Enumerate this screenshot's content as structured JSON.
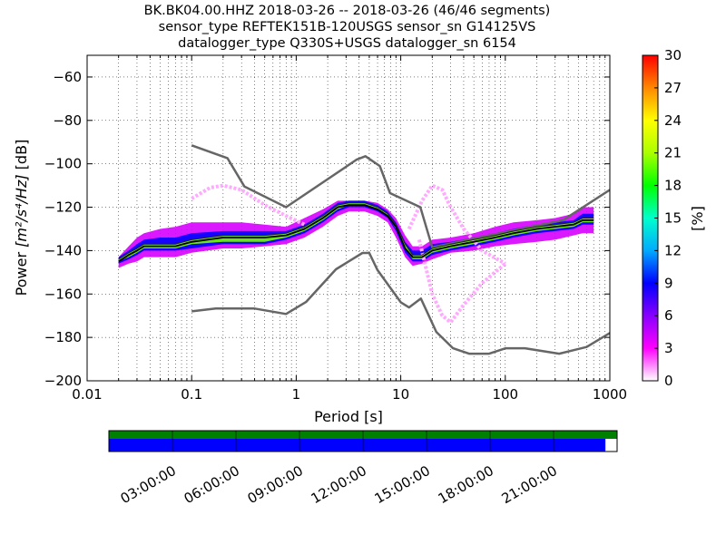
{
  "titles": {
    "line1": "BK.BK04.00.HHZ   2018-03-26 -- 2018-03-26  (46/46 segments)",
    "line2": "sensor_type REFTEK151B-120USGS sensor_sn G14125VS",
    "line3": "datalogger_type Q330S+USGS datalogger_sn 6154"
  },
  "chart_data": {
    "type": "heatmap",
    "title": "BK.BK04.00.HHZ   2018-03-26 -- 2018-03-26  (46/46 segments)",
    "xlabel": "Period [s]",
    "ylabel_prefix": "Power ",
    "ylabel_units": "[m²/s⁴/Hz]",
    "ylabel_suffix": " [dB]",
    "xscale": "log",
    "xlim": [
      0.01,
      1000
    ],
    "ylim": [
      -200,
      -50
    ],
    "x_ticks": [
      0.01,
      0.1,
      1,
      10,
      100,
      1000
    ],
    "x_tick_labels": [
      "0.01",
      "0.1",
      "1",
      "10",
      "100",
      "1000"
    ],
    "y_ticks": [
      -200,
      -180,
      -160,
      -140,
      -120,
      -100,
      -80,
      -60
    ],
    "y_tick_labels": [
      "−200",
      "−180",
      "−160",
      "−140",
      "−120",
      "−100",
      "−80",
      "−60"
    ],
    "grid": "dotted",
    "colorbar": {
      "label": "[%]",
      "ticks": [
        0,
        3,
        6,
        9,
        12,
        15,
        18,
        21,
        24,
        27,
        30
      ],
      "tick_labels": [
        "0",
        "3",
        "6",
        "9",
        "12",
        "15",
        "18",
        "21",
        "24",
        "27",
        "30"
      ],
      "range": [
        0,
        30
      ],
      "colors": [
        "#ffffff",
        "#ff00ff",
        "#8800ff",
        "#0000ff",
        "#00aaff",
        "#00ffcc",
        "#00ff00",
        "#aaff00",
        "#ffff00",
        "#ff8800",
        "#ff0000"
      ]
    },
    "nlnm": {
      "name": "NLNM",
      "x": [
        0.1,
        0.17,
        0.4,
        0.8,
        1.24,
        2.4,
        4.3,
        5.0,
        6.0,
        10.0,
        12.0,
        15.6,
        21.9,
        31.6,
        45.0,
        70.0,
        101.0,
        154.0,
        328.0,
        600.0,
        1000.0
      ],
      "y": [
        -168,
        -166.7,
        -166.7,
        -169.2,
        -163.7,
        -148.6,
        -141.1,
        -141.1,
        -149.0,
        -163.8,
        -166.2,
        -162.1,
        -177.5,
        -185.0,
        -187.5,
        -187.5,
        -185.0,
        -185.0,
        -187.5,
        -184.4,
        -178.0
      ]
    },
    "nhnm": {
      "name": "NHNM",
      "x": [
        0.1,
        0.22,
        0.32,
        0.8,
        3.8,
        4.6,
        6.3,
        7.9,
        15.4,
        20.0,
        354.8,
        1000.0
      ],
      "y": [
        -91.5,
        -97.4,
        -110.5,
        -120.0,
        -98.0,
        -96.5,
        -101.0,
        -113.5,
        -120.0,
        -138.5,
        -126.0,
        -112.0
      ]
    },
    "mean": {
      "name": "mean",
      "x": [
        0.02,
        0.025,
        0.03,
        0.035,
        0.05,
        0.07,
        0.1,
        0.2,
        0.3,
        0.5,
        0.8,
        1.2,
        1.8,
        2.5,
        3.2,
        4.5,
        6.0,
        7.5,
        9.0,
        11.0,
        13.0,
        16.0,
        20.0,
        30.0,
        50.0,
        80.0,
        120.0,
        200.0,
        300.0,
        450.0,
        550.0,
        700.0
      ],
      "y": [
        -145,
        -142,
        -140,
        -138,
        -138,
        -138,
        -136,
        -134,
        -134,
        -134,
        -133,
        -130,
        -125,
        -120,
        -119,
        -119,
        -121,
        -124,
        -129,
        -139,
        -143,
        -143,
        -140,
        -138,
        -136,
        -134,
        -132,
        -130,
        -129,
        -128,
        -126,
        -126
      ]
    },
    "median": {
      "name": "median",
      "x": [
        0.02,
        0.025,
        0.03,
        0.035,
        0.05,
        0.07,
        0.1,
        0.2,
        0.3,
        0.5,
        0.8,
        1.2,
        1.8,
        2.5,
        3.2,
        4.5,
        6.0,
        7.5,
        9.0,
        11.0,
        13.0,
        16.0,
        20.0,
        30.0,
        50.0,
        80.0,
        120.0,
        200.0,
        300.0,
        450.0,
        550.0,
        700.0
      ],
      "y": [
        -144,
        -141,
        -139,
        -137,
        -137,
        -137,
        -135,
        -133,
        -133,
        -133,
        -132,
        -129,
        -124,
        -119,
        -118,
        -118,
        -120,
        -123,
        -128,
        -137,
        -142,
        -142,
        -139,
        -137,
        -135,
        -133,
        -131,
        -129,
        -128,
        -127,
        -125,
        -125
      ]
    },
    "density_bands": [
      {
        "x": [
          0.02,
          0.025,
          0.03,
          0.035,
          0.05,
          0.07,
          0.1,
          0.2,
          0.3,
          0.5,
          0.8,
          1.2,
          1.8,
          2.5,
          3.2,
          4.5,
          6.0,
          7.5,
          9.0,
          11.0,
          13.0,
          16.0,
          20.0,
          30.0,
          50.0,
          80.0,
          120.0,
          200.0,
          300.0,
          450.0,
          550.0,
          700.0
        ],
        "y_low": [
          -148,
          -146,
          -145,
          -143,
          -143,
          -143,
          -141,
          -139,
          -139,
          -138,
          -137,
          -134,
          -129,
          -124,
          -122,
          -122,
          -124,
          -127,
          -134,
          -143,
          -147,
          -146,
          -144,
          -141,
          -140,
          -138,
          -137,
          -136,
          -135,
          -133,
          -132,
          -132
        ],
        "y_high": [
          -143,
          -138,
          -134,
          -132,
          -130,
          -129,
          -127,
          -127,
          -127,
          -128,
          -129,
          -125,
          -121,
          -117,
          -117,
          -117,
          -118,
          -121,
          -125,
          -133,
          -138,
          -138,
          -135,
          -134,
          -132,
          -129,
          -127,
          -126,
          -125,
          -123,
          -120,
          -120
        ],
        "percent": 4
      },
      {
        "x": [
          0.02,
          0.025,
          0.03,
          0.035,
          0.05,
          0.07,
          0.1,
          0.2,
          0.3,
          0.5,
          0.8,
          1.2,
          1.8,
          2.5,
          3.2,
          4.5,
          6.0,
          7.5,
          9.0,
          11.0,
          13.0,
          16.0,
          20.0,
          30.0,
          50.0,
          80.0,
          120.0,
          200.0,
          300.0,
          450.0,
          550.0,
          700.0
        ],
        "y_low": [
          -146,
          -144,
          -142,
          -140,
          -140,
          -140,
          -139,
          -137,
          -137,
          -137,
          -135,
          -132,
          -127,
          -122,
          -120,
          -120,
          -122,
          -125,
          -131,
          -141,
          -145,
          -145,
          -142,
          -140,
          -138,
          -136,
          -134,
          -132,
          -131,
          -130,
          -128,
          -128
        ],
        "y_high": [
          -143,
          -140,
          -137,
          -135,
          -134,
          -134,
          -132,
          -131,
          -131,
          -131,
          -131,
          -128,
          -123,
          -118,
          -117,
          -117,
          -119,
          -122,
          -127,
          -136,
          -140,
          -140,
          -137,
          -136,
          -134,
          -132,
          -130,
          -128,
          -127,
          -126,
          -123,
          -123
        ],
        "percent": 9
      },
      {
        "x": [
          0.02,
          0.025,
          0.03,
          0.035,
          0.05,
          0.07,
          0.1,
          0.2,
          0.3,
          0.5,
          0.8,
          1.2,
          1.8,
          2.5,
          3.2,
          4.5,
          6.0,
          7.5,
          9.0,
          11.0,
          13.0,
          16.0,
          20.0,
          30.0,
          50.0,
          80.0,
          120.0,
          200.0,
          300.0,
          450.0,
          550.0,
          700.0
        ],
        "y_low": [
          -145,
          -143,
          -141,
          -139,
          -139,
          -139,
          -137,
          -136,
          -136,
          -136,
          -134,
          -131,
          -126,
          -121,
          -119,
          -119,
          -121,
          -124,
          -130,
          -139,
          -144,
          -144,
          -141,
          -139,
          -137,
          -135,
          -133,
          -131,
          -130,
          -129,
          -127,
          -127
        ],
        "y_high": [
          -144,
          -141,
          -139,
          -137,
          -137,
          -137,
          -135,
          -133,
          -133,
          -133,
          -132,
          -129,
          -124,
          -119,
          -118,
          -118,
          -120,
          -123,
          -128,
          -137,
          -142,
          -142,
          -139,
          -137,
          -135,
          -133,
          -131,
          -129,
          -128,
          -127,
          -125,
          -125
        ],
        "percent": 20
      }
    ],
    "outlier_curves": [
      {
        "x": [
          0.1,
          0.15,
          0.2,
          0.3,
          0.5,
          0.8,
          1.2
        ],
        "y": [
          -116,
          -111,
          -110,
          -112,
          -119,
          -124,
          -128
        ],
        "percent": 1
      },
      {
        "x": [
          15.0,
          20.0,
          25.0,
          30.0,
          40.0,
          60.0,
          100.0
        ],
        "y": [
          -135,
          -160,
          -170,
          -173,
          -165,
          -155,
          -146
        ],
        "percent": 1
      },
      {
        "x": [
          12.0,
          16.0,
          20.0,
          25.0,
          30.0,
          40.0,
          60.0,
          100.0
        ],
        "y": [
          -130,
          -117,
          -110,
          -112,
          -120,
          -130,
          -140,
          -146
        ],
        "percent": 1
      }
    ]
  },
  "timeline": {
    "tick_labels": [
      "03:00:00",
      "06:00:00",
      "09:00:00",
      "12:00:00",
      "15:00:00",
      "18:00:00",
      "21:00:00"
    ],
    "tick_hours": [
      3,
      6,
      9,
      12,
      15,
      18,
      21
    ],
    "range_hours": [
      0,
      24
    ],
    "data_coverage_fraction": 1.0,
    "processed_coverage_fraction": 0.977,
    "colors": {
      "coverage": "#008000",
      "processed": "#0000ff"
    }
  }
}
